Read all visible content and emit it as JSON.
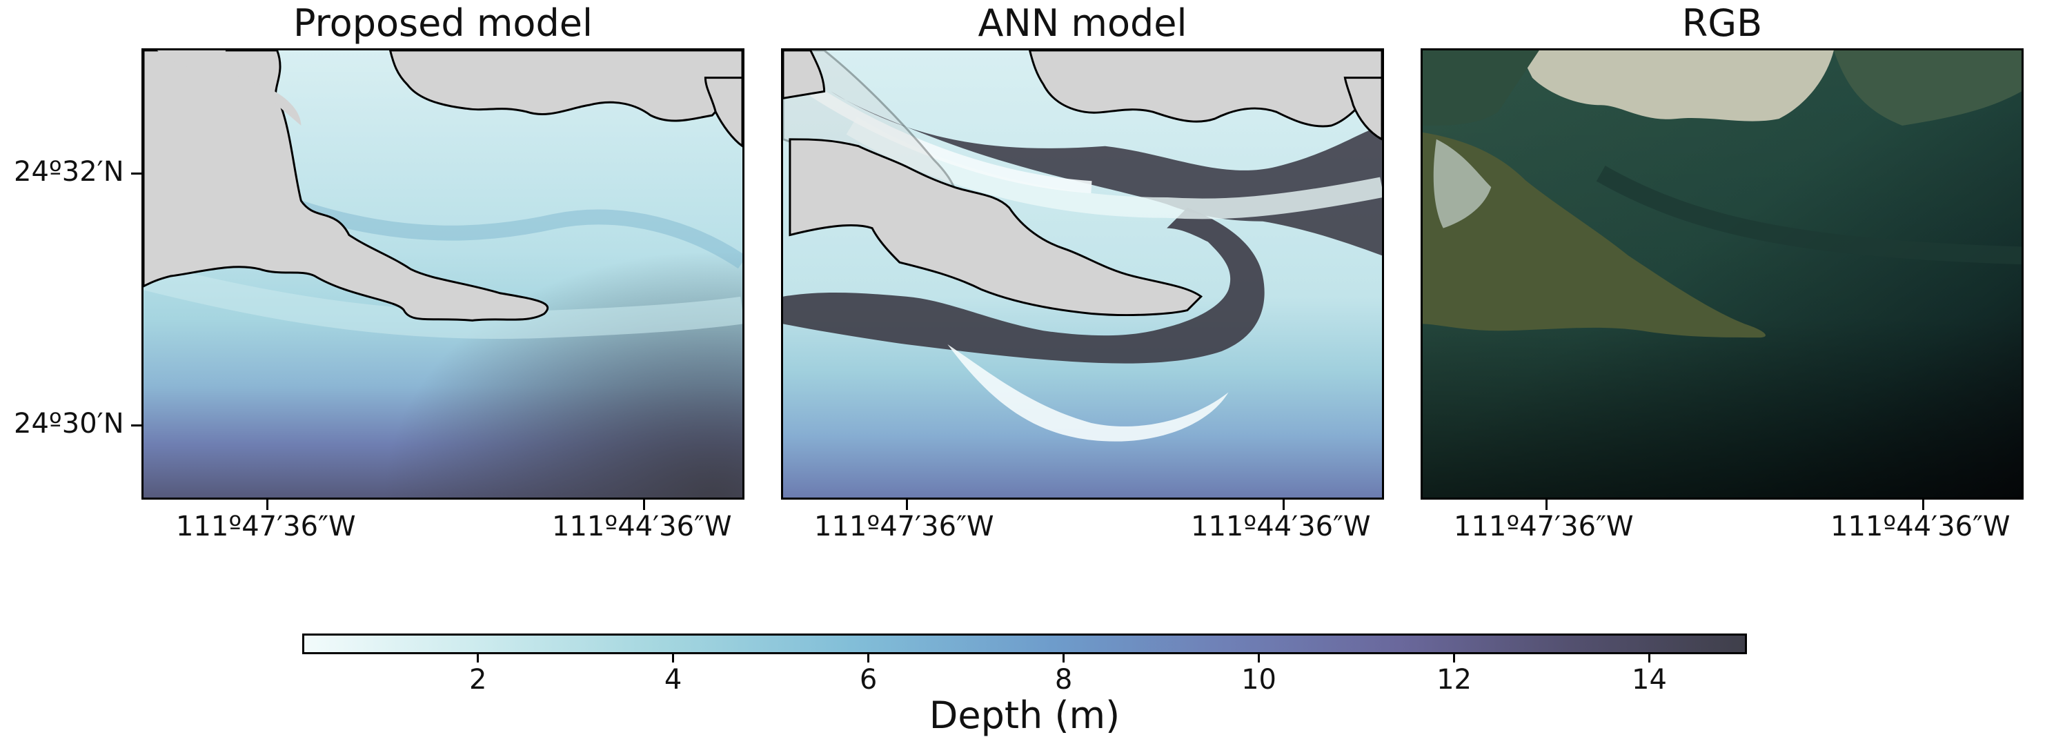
{
  "panels": [
    {
      "title": "Proposed model"
    },
    {
      "title": "ANN model"
    },
    {
      "title": "RGB"
    }
  ],
  "axes": {
    "lat_ticks": [
      "24º32′N",
      "24º30′N"
    ],
    "lon_ticks": [
      "111º47′36″W",
      "111º44′36″W"
    ]
  },
  "colorbar": {
    "label": "Depth (m)",
    "ticks": [
      "2",
      "4",
      "6",
      "8",
      "10",
      "12",
      "14"
    ],
    "range": [
      0.2,
      15
    ],
    "colors": [
      "#f2fbfb",
      "#a4d6df",
      "#6e9ccb",
      "#6a689c",
      "#3f3f4a"
    ]
  },
  "colors": {
    "land": "#d3d3d3",
    "coast_line": "#000000"
  }
}
